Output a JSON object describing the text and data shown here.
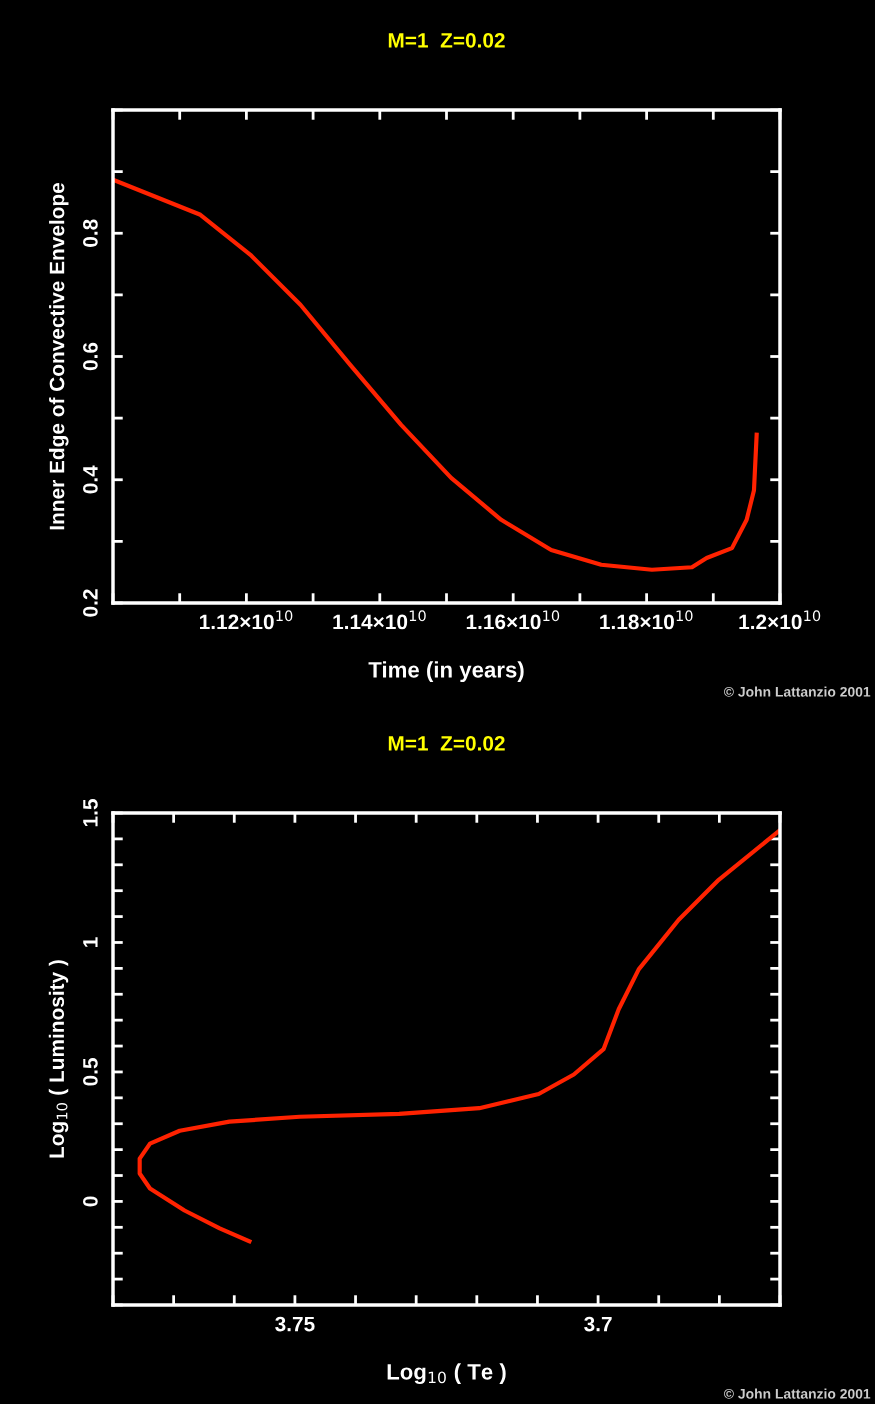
{
  "chart_data": [
    {
      "type": "line",
      "title": "M=1  Z=0.02",
      "xlabel": "Time (in years)",
      "ylabel": "Inner Edge of Convective Envelope",
      "series": [
        {
          "color": "#ff2200",
          "x": [
            11000000000.0,
            11131000000.0,
            11206000000.0,
            11281000000.0,
            11356000000.0,
            11432000000.0,
            11507000000.0,
            11582000000.0,
            11657000000.0,
            11732000000.0,
            11808000000.0,
            11868000000.0,
            11890000000.0,
            11928000000.0,
            11950000000.0,
            11961000000.0,
            11965000000.0
          ],
          "values": [
            0.887,
            0.83,
            0.765,
            0.684,
            0.586,
            0.489,
            0.403,
            0.335,
            0.286,
            0.262,
            0.254,
            0.258,
            0.273,
            0.289,
            0.335,
            0.383,
            0.473
          ]
        }
      ],
      "xlim": [
        11000000000.0,
        12000000000.0
      ],
      "xticks": [
        {
          "value": 11000000000.0,
          "label": null
        },
        {
          "value": 11100000000.0,
          "label": null
        },
        {
          "value": 11200000000.0,
          "label": "1.12×10$^{10}$"
        },
        {
          "value": 11300000000.0,
          "label": null
        },
        {
          "value": 11400000000.0,
          "label": "1.14×10$^{10}$"
        },
        {
          "value": 11500000000.0,
          "label": null
        },
        {
          "value": 11600000000.0,
          "label": "1.16×10$^{10}$"
        },
        {
          "value": 11700000000.0,
          "label": null
        },
        {
          "value": 11800000000.0,
          "label": "1.18×10$^{10}$"
        },
        {
          "value": 11900000000.0,
          "label": null
        },
        {
          "value": 12000000000.0,
          "label": "1.2×10$^{10}$"
        }
      ],
      "ylim": [
        0.2,
        1.0
      ],
      "yticks": [
        0.2,
        {
          "value": 0.3,
          "label": null
        },
        0.4,
        {
          "value": 0.5,
          "label": null
        },
        0.6,
        {
          "value": 0.7,
          "label": null
        },
        0.8,
        {
          "value": 0.9,
          "label": null
        },
        {
          "value": 1.0,
          "label": null
        }
      ],
      "grid": false,
      "marker": "none",
      "line_style": "solid",
      "annotations": [
        "© John Lattanzio 2001"
      ]
    },
    {
      "type": "line",
      "title": "M=1  Z=0.02",
      "xlabel": "Log$_{10}$ ( Te )",
      "ylabel": "Log$_{10}$ ( Luminosity )",
      "series": [
        {
          "color": "#ff2200",
          "x": [
            3.7575,
            3.7624,
            3.7682,
            3.7739,
            3.7756,
            3.7756,
            3.7739,
            3.769,
            3.7608,
            3.7492,
            3.7328,
            3.7196,
            3.7098,
            3.704,
            3.6991,
            3.6966,
            3.6933,
            3.6867,
            3.6801,
            3.67
          ],
          "values": [
            -0.154,
            -0.104,
            -0.035,
            0.05,
            0.108,
            0.165,
            0.223,
            0.273,
            0.308,
            0.327,
            0.338,
            0.36,
            0.415,
            0.49,
            0.588,
            0.742,
            0.896,
            1.088,
            1.242,
            1.434
          ]
        }
      ],
      "xlim": [
        3.78,
        3.67
      ],
      "xticks": [
        {
          "value": 3.78,
          "label": null
        },
        {
          "value": 3.77,
          "label": null
        },
        {
          "value": 3.76,
          "label": null
        },
        3.75,
        {
          "value": 3.74,
          "label": null
        },
        {
          "value": 3.73,
          "label": null
        },
        {
          "value": 3.72,
          "label": null
        },
        {
          "value": 3.71,
          "label": null
        },
        3.7,
        {
          "value": 3.69,
          "label": null
        },
        {
          "value": 3.68,
          "label": null
        },
        {
          "value": 3.67,
          "label": null
        }
      ],
      "ylim": [
        -0.4,
        1.5
      ],
      "yticks": [
        {
          "value": -0.4,
          "label": null
        },
        {
          "value": -0.3,
          "label": null
        },
        {
          "value": -0.2,
          "label": null
        },
        {
          "value": -0.1,
          "label": null
        },
        0,
        {
          "value": 0.1,
          "label": null
        },
        {
          "value": 0.2,
          "label": null
        },
        {
          "value": 0.3,
          "label": null
        },
        {
          "value": 0.4,
          "label": null
        },
        0.5,
        {
          "value": 0.6,
          "label": null
        },
        {
          "value": 0.7,
          "label": null
        },
        {
          "value": 0.8,
          "label": null
        },
        {
          "value": 0.9,
          "label": null
        },
        1,
        {
          "value": 1.1,
          "label": null
        },
        {
          "value": 1.2,
          "label": null
        },
        {
          "value": 1.3,
          "label": null
        },
        {
          "value": 1.4,
          "label": null
        },
        1.5
      ],
      "grid": false,
      "marker": "none",
      "line_style": "solid",
      "annotations": [
        "© John Lattanzio 2001"
      ]
    }
  ]
}
